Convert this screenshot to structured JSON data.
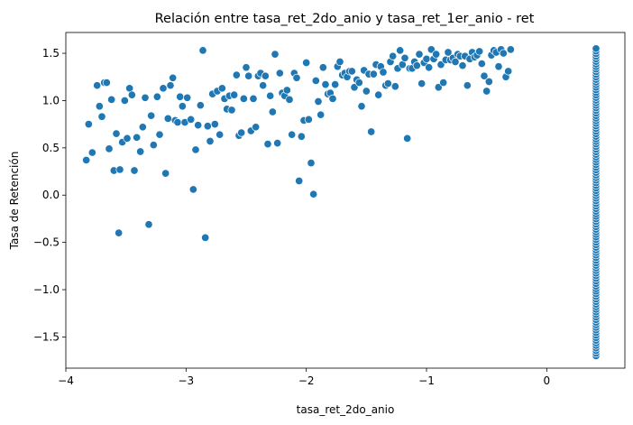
{
  "chart_data": {
    "type": "scatter",
    "title": "Relación entre tasa_ret_2do_anio y tasa_ret_1er_anio - ret",
    "xlabel": "tasa_ret_2do_anio",
    "ylabel": "Tasa de Retención",
    "xlim": [
      -4.0,
      0.65
    ],
    "ylim": [
      -1.83,
      1.72
    ],
    "xticks": [
      -4,
      -3,
      -2,
      -1,
      0
    ],
    "xtick_labels": [
      "−4",
      "−3",
      "−2",
      "−1",
      "0"
    ],
    "yticks": [
      -1.5,
      -1.0,
      -0.5,
      0.0,
      0.5,
      1.0,
      1.5
    ],
    "ytick_labels": [
      "−1.5",
      "−1.0",
      "−0.5",
      "0.0",
      "0.5",
      "1.0",
      "1.5"
    ],
    "grid": false,
    "legend": "none",
    "marker_color": "#1f77b4",
    "points": [
      [
        -3.83,
        0.37
      ],
      [
        -3.81,
        0.75
      ],
      [
        -3.78,
        0.45
      ],
      [
        -3.74,
        1.16
      ],
      [
        -3.72,
        0.94
      ],
      [
        -3.7,
        0.83
      ],
      [
        -3.68,
        1.19
      ],
      [
        -3.66,
        1.19
      ],
      [
        -3.64,
        0.49
      ],
      [
        -3.62,
        1.01
      ],
      [
        -3.6,
        0.26
      ],
      [
        -3.58,
        0.65
      ],
      [
        -3.56,
        -0.4
      ],
      [
        -3.55,
        0.27
      ],
      [
        -3.53,
        0.56
      ],
      [
        -3.51,
        1.0
      ],
      [
        -3.49,
        0.6
      ],
      [
        -3.47,
        1.13
      ],
      [
        -3.45,
        1.06
      ],
      [
        -3.43,
        0.26
      ],
      [
        -3.41,
        0.61
      ],
      [
        -3.38,
        0.46
      ],
      [
        -3.36,
        0.72
      ],
      [
        -3.34,
        1.03
      ],
      [
        -3.31,
        -0.31
      ],
      [
        -3.29,
        0.84
      ],
      [
        -3.27,
        0.53
      ],
      [
        -3.24,
        1.04
      ],
      [
        -3.22,
        0.64
      ],
      [
        -3.19,
        1.13
      ],
      [
        -3.17,
        0.23
      ],
      [
        -3.15,
        0.81
      ],
      [
        -3.13,
        1.16
      ],
      [
        -3.11,
        1.24
      ],
      [
        -3.09,
        0.79
      ],
      [
        -3.07,
        0.77
      ],
      [
        -3.05,
        1.04
      ],
      [
        -3.03,
        0.94
      ],
      [
        -3.01,
        0.77
      ],
      [
        -2.99,
        1.03
      ],
      [
        -2.96,
        0.8
      ],
      [
        -2.94,
        0.06
      ],
      [
        -2.92,
        0.48
      ],
      [
        -2.9,
        0.74
      ],
      [
        -2.88,
        0.95
      ],
      [
        -2.86,
        1.53
      ],
      [
        -2.84,
        -0.45
      ],
      [
        -2.82,
        0.73
      ],
      [
        -2.8,
        0.57
      ],
      [
        -2.78,
        1.07
      ],
      [
        -2.76,
        0.75
      ],
      [
        -2.74,
        1.1
      ],
      [
        -2.72,
        0.64
      ],
      [
        -2.7,
        1.13
      ],
      [
        -2.68,
        1.02
      ],
      [
        -2.66,
        0.91
      ],
      [
        -2.64,
        1.05
      ],
      [
        -2.62,
        0.9
      ],
      [
        -2.6,
        1.06
      ],
      [
        -2.58,
        1.27
      ],
      [
        -2.56,
        0.63
      ],
      [
        -2.54,
        0.66
      ],
      [
        -2.52,
        1.02
      ],
      [
        -2.5,
        1.35
      ],
      [
        -2.48,
        1.26
      ],
      [
        -2.46,
        0.68
      ],
      [
        -2.44,
        1.02
      ],
      [
        -2.42,
        0.72
      ],
      [
        -2.4,
        1.26
      ],
      [
        -2.38,
        1.29
      ],
      [
        -2.36,
        1.16
      ],
      [
        -2.34,
        1.26
      ],
      [
        -2.32,
        0.54
      ],
      [
        -2.3,
        1.05
      ],
      [
        -2.28,
        0.88
      ],
      [
        -2.26,
        1.49
      ],
      [
        -2.24,
        0.55
      ],
      [
        -2.22,
        1.29
      ],
      [
        -2.2,
        1.08
      ],
      [
        -2.18,
        1.05
      ],
      [
        -2.16,
        1.11
      ],
      [
        -2.14,
        1.01
      ],
      [
        -2.12,
        0.64
      ],
      [
        -2.1,
        1.29
      ],
      [
        -2.08,
        1.24
      ],
      [
        -2.06,
        0.15
      ],
      [
        -2.04,
        0.62
      ],
      [
        -2.02,
        0.79
      ],
      [
        -2.0,
        1.4
      ],
      [
        -1.98,
        0.8
      ],
      [
        -1.96,
        0.34
      ],
      [
        -1.94,
        0.01
      ],
      [
        -1.92,
        1.21
      ],
      [
        -1.9,
        0.99
      ],
      [
        -1.88,
        0.85
      ],
      [
        -1.86,
        1.35
      ],
      [
        -1.84,
        1.17
      ],
      [
        -1.82,
        1.07
      ],
      [
        -1.8,
        1.08
      ],
      [
        -1.78,
        1.02
      ],
      [
        -1.76,
        1.17
      ],
      [
        -1.74,
        1.36
      ],
      [
        -1.72,
        1.41
      ],
      [
        -1.7,
        1.27
      ],
      [
        -1.68,
        1.29
      ],
      [
        -1.66,
        1.25
      ],
      [
        -1.64,
        1.31
      ],
      [
        -1.62,
        1.31
      ],
      [
        -1.6,
        1.14
      ],
      [
        -1.58,
        1.22
      ],
      [
        -1.56,
        1.19
      ],
      [
        -1.54,
        0.94
      ],
      [
        -1.52,
        1.32
      ],
      [
        -1.5,
        1.1
      ],
      [
        -1.48,
        1.28
      ],
      [
        -1.46,
        0.67
      ],
      [
        -1.44,
        1.28
      ],
      [
        -1.42,
        1.38
      ],
      [
        -1.4,
        1.06
      ],
      [
        -1.38,
        1.36
      ],
      [
        -1.36,
        1.3
      ],
      [
        -1.34,
        1.16
      ],
      [
        -1.32,
        1.18
      ],
      [
        -1.3,
        1.41
      ],
      [
        -1.28,
        1.47
      ],
      [
        -1.26,
        1.15
      ],
      [
        -1.24,
        1.34
      ],
      [
        -1.22,
        1.53
      ],
      [
        -1.2,
        1.38
      ],
      [
        -1.18,
        1.45
      ],
      [
        -1.16,
        0.6
      ],
      [
        -1.14,
        1.34
      ],
      [
        -1.12,
        1.34
      ],
      [
        -1.1,
        1.41
      ],
      [
        -1.08,
        1.37
      ],
      [
        -1.06,
        1.49
      ],
      [
        -1.04,
        1.18
      ],
      [
        -1.02,
        1.4
      ],
      [
        -1.0,
        1.44
      ],
      [
        -0.98,
        1.35
      ],
      [
        -0.96,
        1.54
      ],
      [
        -0.94,
        1.44
      ],
      [
        -0.92,
        1.49
      ],
      [
        -0.9,
        1.14
      ],
      [
        -0.88,
        1.38
      ],
      [
        -0.86,
        1.19
      ],
      [
        -0.84,
        1.43
      ],
      [
        -0.82,
        1.51
      ],
      [
        -0.8,
        1.43
      ],
      [
        -0.78,
        1.45
      ],
      [
        -0.76,
        1.41
      ],
      [
        -0.74,
        1.49
      ],
      [
        -0.72,
        1.47
      ],
      [
        -0.7,
        1.37
      ],
      [
        -0.68,
        1.47
      ],
      [
        -0.66,
        1.16
      ],
      [
        -0.64,
        1.44
      ],
      [
        -0.62,
        1.51
      ],
      [
        -0.6,
        1.46
      ],
      [
        -0.58,
        1.48
      ],
      [
        -0.56,
        1.52
      ],
      [
        -0.54,
        1.39
      ],
      [
        -0.52,
        1.26
      ],
      [
        -0.5,
        1.1
      ],
      [
        -0.48,
        1.2
      ],
      [
        -0.46,
        1.48
      ],
      [
        -0.44,
        1.53
      ],
      [
        -0.42,
        1.51
      ],
      [
        -0.4,
        1.36
      ],
      [
        -0.38,
        1.54
      ],
      [
        -0.36,
        1.5
      ],
      [
        -0.34,
        1.25
      ],
      [
        -0.32,
        1.31
      ],
      [
        -0.3,
        1.54
      ]
    ],
    "vertical_band": {
      "x": 0.41,
      "y_min": -1.7,
      "y_max": 1.55,
      "count": 120
    }
  }
}
